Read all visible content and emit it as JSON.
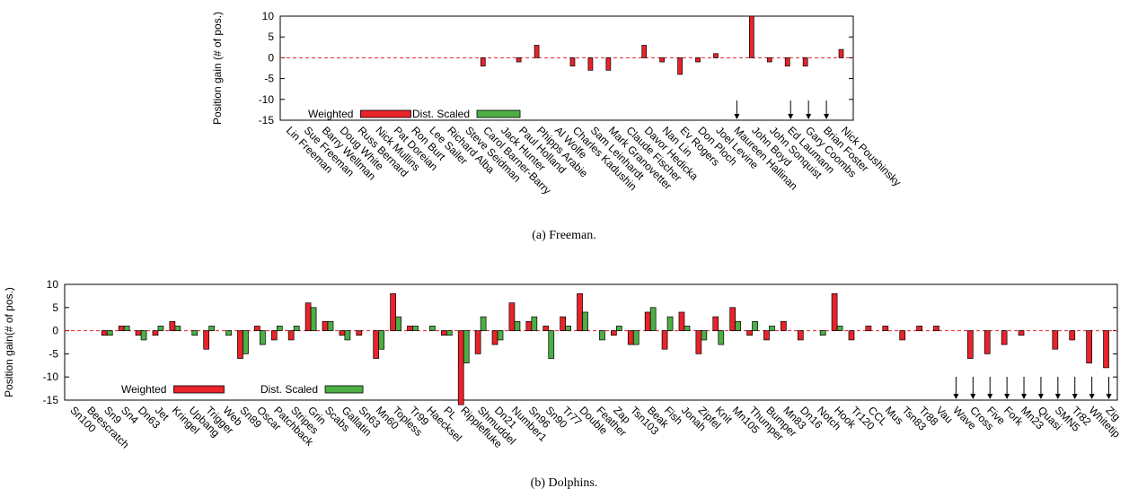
{
  "chart_data": [
    {
      "type": "bar",
      "ylabel": "Position gain (# of pos.)",
      "ylim": [
        -15,
        10
      ],
      "yticks": [
        10,
        5,
        0,
        -5,
        -10,
        -15
      ],
      "caption": "(a)  Freeman.",
      "categories": [
        "Lin Freeman",
        "Sue Freeman",
        "Barry Wellman",
        "Doug White",
        "Russ Bernard",
        "Nick Mullins",
        "Pat Doreian",
        "Ron Burt",
        "Lee Sailer",
        "Richard Alba",
        "Steve Seidman",
        "Carol Barner-Barry",
        "Jack Hunter",
        "Paul Holland",
        "Phipps Arabie",
        "Al Wolfe",
        "Charles Kadushin",
        "Sam Leinhardt",
        "Mark Granovetter",
        "Claude Fischer",
        "Davor Hedicka",
        "Nan Lin",
        "Ev Rogers",
        "Don Ploch",
        "Joel Levine",
        "Maureen Hallinan",
        "John Boyd",
        "John Sonquist",
        "Ed Laumann",
        "Gary Coombs",
        "Brian Foster",
        "Nick Poushinsky"
      ],
      "series": [
        {
          "name": "Weighted",
          "color": "#e8232a",
          "values": [
            0,
            0,
            0,
            0,
            0,
            0,
            0,
            0,
            0,
            0,
            0,
            -2,
            0,
            -1,
            3,
            0,
            -2,
            -3,
            -3,
            0,
            3,
            -1,
            -4,
            -1,
            1,
            0,
            10,
            -1,
            -2,
            -2,
            0,
            2
          ]
        },
        {
          "name": "Dist. Scaled",
          "color": "#4cae45",
          "values": [
            0,
            0,
            0,
            0,
            0,
            0,
            0,
            0,
            0,
            0,
            0,
            0,
            0,
            0,
            0,
            0,
            0,
            0,
            0,
            0,
            0,
            0,
            0,
            0,
            0,
            0,
            0,
            0,
            0,
            0,
            0,
            0
          ]
        }
      ],
      "arrow_categories": [
        "Maureen Hallinan",
        "Ed Laumann",
        "Gary Coombs",
        "Brian Foster"
      ]
    },
    {
      "type": "bar",
      "ylabel": "Position gain(# of pos.)",
      "ylim": [
        -15,
        10
      ],
      "yticks": [
        10,
        5,
        0,
        -5,
        -10,
        -15
      ],
      "caption": "(b)  Dolphins.",
      "categories": [
        "Sn100",
        "Beescratch",
        "Sn9",
        "Sn4",
        "Dn63",
        "Jet",
        "Kringel",
        "Upbang",
        "Trigger",
        "Web",
        "Sn89",
        "Oscar",
        "Patchback",
        "Stripes",
        "Grin",
        "Scabs",
        "Gallatin",
        "Sn63",
        "Mn60",
        "Topless",
        "Tr99",
        "Haecksel",
        "PL",
        "Ripplefluke",
        "Shmuddel",
        "Dn21",
        "Number1",
        "Sn96",
        "Sn90",
        "Tr77",
        "Double",
        "Feather",
        "Zap",
        "Tsn103",
        "Beak",
        "Fish",
        "Jonah",
        "Zipfel",
        "Knit",
        "Mn105",
        "Thumper",
        "Bumper",
        "Mn83",
        "Dn16",
        "Notch",
        "Hook",
        "Tr120",
        "CCL",
        "Mus",
        "Tsn83",
        "Tr88",
        "Vau",
        "Wave",
        "Cross",
        "Five",
        "Fork",
        "Mn23",
        "Quasi",
        "SMN5",
        "Tr82",
        "Whitetip",
        "Zig"
      ],
      "series": [
        {
          "name": "Weighted",
          "color": "#e8232a",
          "values": [
            0,
            0,
            -1,
            1,
            -1,
            -1,
            2,
            0,
            -4,
            0,
            -6,
            1,
            -2,
            -2,
            6,
            2,
            -1,
            -1,
            -6,
            8,
            1,
            0,
            -1,
            -16,
            -5,
            -3,
            6,
            2,
            1,
            3,
            8,
            0,
            -1,
            -3,
            4,
            -4,
            4,
            -5,
            3,
            5,
            -1,
            -2,
            2,
            -2,
            0,
            8,
            -2,
            1,
            1,
            -2,
            1,
            1,
            0,
            -6,
            -5,
            -3,
            -1,
            0,
            -4,
            -2,
            -7,
            -8
          ]
        },
        {
          "name": "Dist. Scaled",
          "color": "#4cae45",
          "values": [
            0,
            0,
            -1,
            1,
            -2,
            1,
            1,
            -1,
            1,
            -1,
            -5,
            -3,
            1,
            1,
            5,
            2,
            -2,
            0,
            -4,
            3,
            1,
            1,
            -1,
            -7,
            3,
            -2,
            2,
            3,
            -6,
            1,
            4,
            -2,
            1,
            -3,
            5,
            3,
            1,
            -2,
            -3,
            2,
            2,
            1,
            0,
            0,
            -1,
            1,
            0,
            0,
            0,
            0,
            0,
            0,
            0,
            0,
            0,
            0,
            0,
            0,
            0,
            0,
            0,
            0
          ]
        }
      ],
      "arrow_categories": [
        "Wave",
        "Cross",
        "Five",
        "Fork",
        "Mn23",
        "Quasi",
        "SMN5",
        "Tr82",
        "Whitetip",
        "Zig"
      ]
    }
  ]
}
